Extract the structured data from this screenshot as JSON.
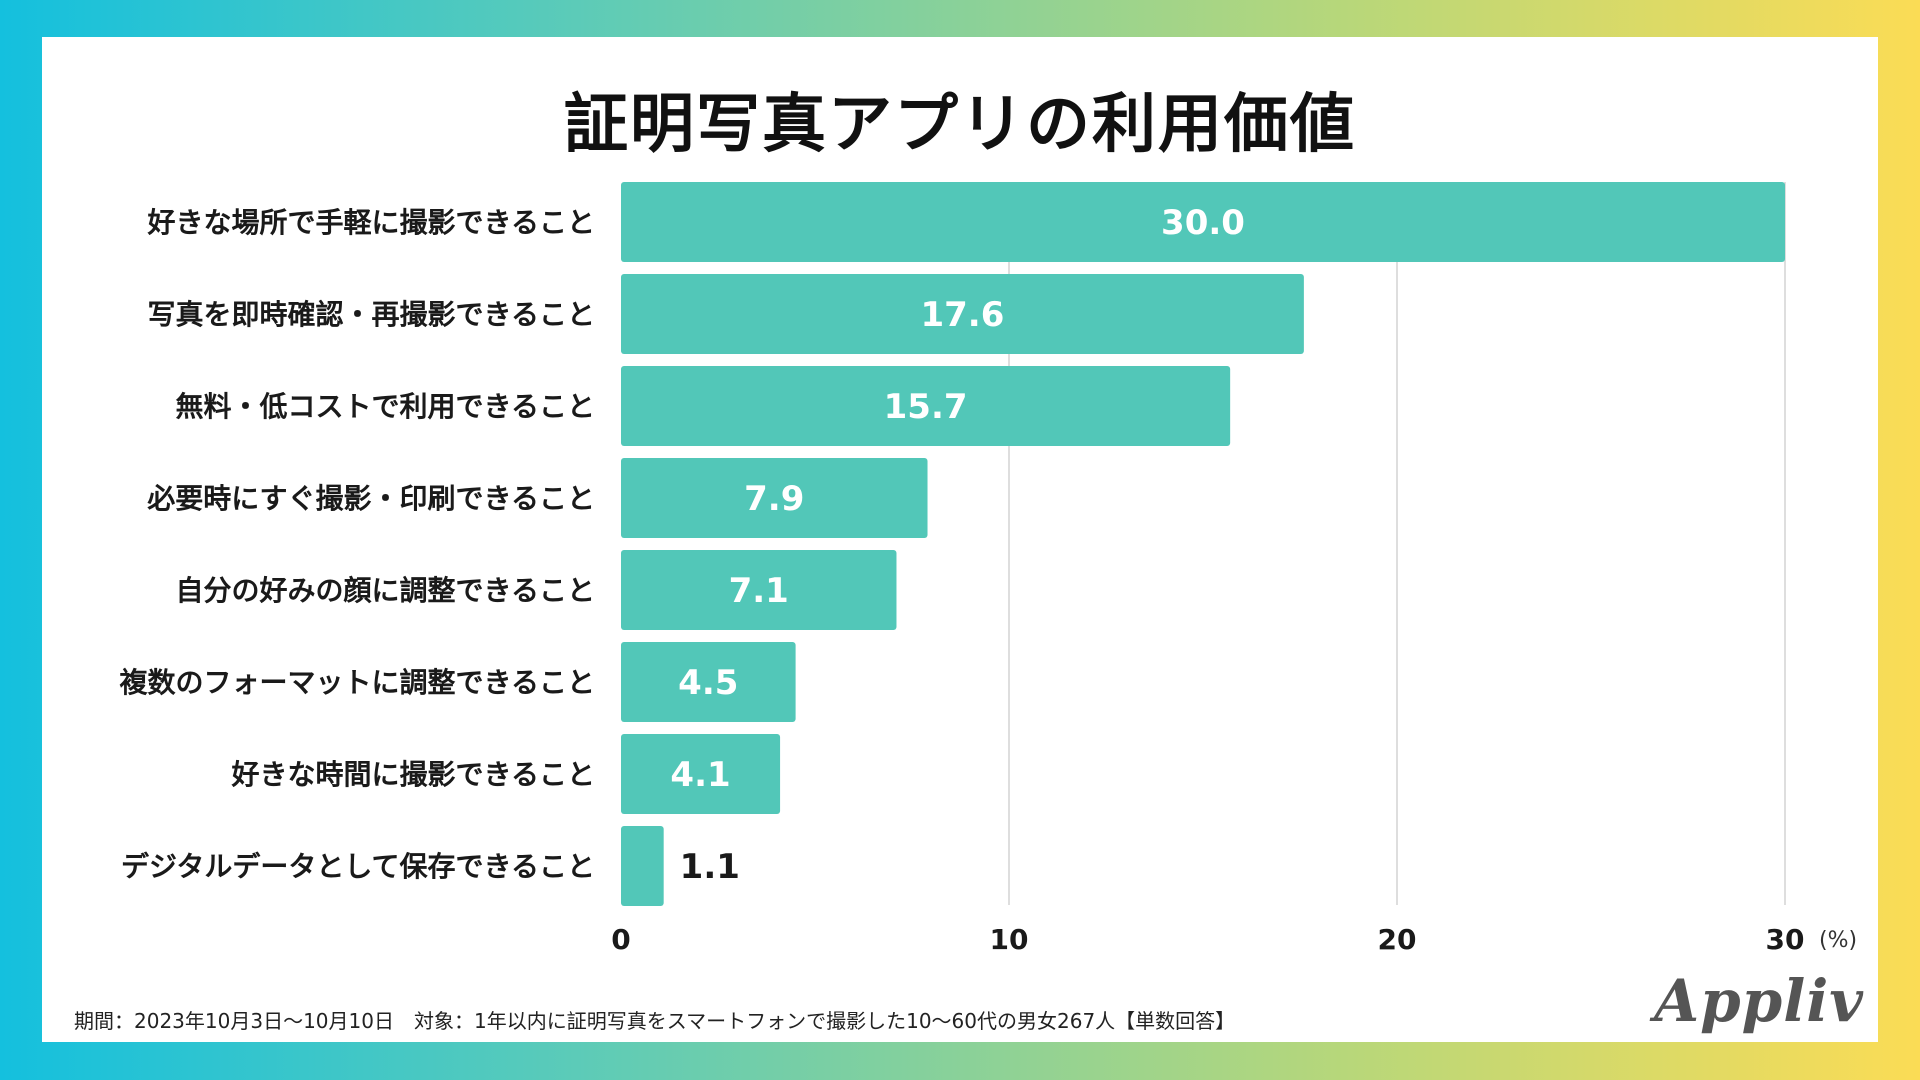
{
  "chart_data": {
    "type": "bar",
    "orientation": "horizontal",
    "title": "証明写真アプリの利用価値",
    "categories": [
      "好きな場所で手軽に撮影できること",
      "写真を即時確認・再撮影できること",
      "無料・低コストで利用できること",
      "必要時にすぐ撮影・印刷できること",
      "自分の好みの顔に調整できること",
      "複数のフォーマットに調整できること",
      "好きな時間に撮影できること",
      "デジタルデータとして保存できること"
    ],
    "values": [
      30.0,
      17.6,
      15.7,
      7.9,
      7.1,
      4.5,
      4.1,
      1.1
    ],
    "value_labels": [
      "30.0",
      "17.6",
      "15.7",
      "7.9",
      "7.1",
      "4.5",
      "4.1",
      "1.1"
    ],
    "xlim": [
      0,
      30
    ],
    "xticks": [
      0,
      10,
      20,
      30
    ],
    "xtick_labels": [
      "0",
      "10",
      "20",
      "30"
    ],
    "unit_label": "(%)",
    "grid": true,
    "bar_color": "#52c7b8"
  },
  "footer": {
    "note": "期間：2023年10月3日〜10月10日　対象：1年以内に証明写真をスマートフォンで撮影した10〜60代の男女267人【単数回答】"
  },
  "brand": {
    "logo_text": "Appliv"
  }
}
